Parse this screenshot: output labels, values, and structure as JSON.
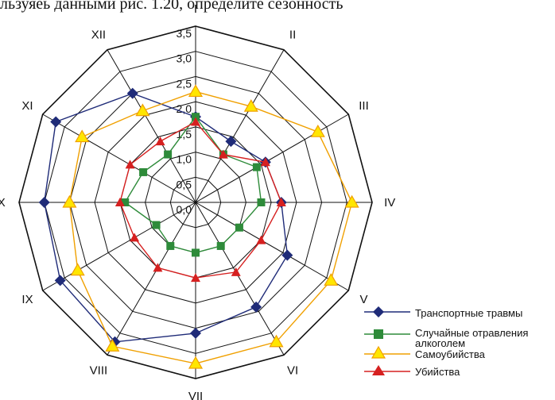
{
  "header_text": "льзуяеь данными рис. 1.20, определите сезонность",
  "colors": {
    "transport": "#1f2b78",
    "poisoning": "#2e8b3a",
    "suicide": "#f0a000",
    "homicide": "#d62020",
    "grid": "#111111"
  },
  "chart_data": {
    "type": "radar",
    "categories": [
      "I",
      "II",
      "III",
      "IV",
      "V",
      "VI",
      "VII",
      "VIII",
      "IX",
      "X",
      "XI",
      "XII"
    ],
    "radial_ticks": [
      "0,0",
      "0,5",
      "1,0",
      "1,5",
      "2,0",
      "2,5",
      "3,0",
      "3,5"
    ],
    "rlim": [
      0,
      3.5
    ],
    "series": [
      {
        "name": "Транспортные травмы",
        "key": "transport",
        "marker": "diamond",
        "values": [
          1.7,
          1.4,
          1.6,
          1.7,
          2.1,
          2.4,
          2.6,
          3.2,
          3.1,
          3.0,
          3.2,
          2.5
        ]
      },
      {
        "name": "Случайные отравления алкоголем",
        "key": "poisoning",
        "marker": "square",
        "values": [
          1.7,
          1.1,
          1.4,
          1.3,
          1.0,
          1.0,
          1.0,
          1.0,
          0.9,
          1.4,
          1.2,
          1.1
        ]
      },
      {
        "name": "Самоубийства",
        "key": "suicide",
        "marker": "triangle",
        "values": [
          2.2,
          2.2,
          2.8,
          3.1,
          3.1,
          3.2,
          3.2,
          3.3,
          2.7,
          2.5,
          2.6,
          2.1
        ]
      },
      {
        "name": "Убийства",
        "key": "homicide",
        "marker": "triangle",
        "values": [
          1.6,
          1.1,
          1.6,
          1.7,
          1.5,
          1.6,
          1.5,
          1.5,
          1.4,
          1.5,
          1.5,
          1.4
        ]
      }
    ]
  },
  "legend": {
    "items": [
      {
        "lines": [
          "Транспортные травмы"
        ]
      },
      {
        "lines": [
          "Случайные отравления",
          "алкоголем"
        ]
      },
      {
        "lines": [
          "Самоубийства"
        ]
      },
      {
        "lines": [
          "Убийства"
        ]
      }
    ]
  }
}
